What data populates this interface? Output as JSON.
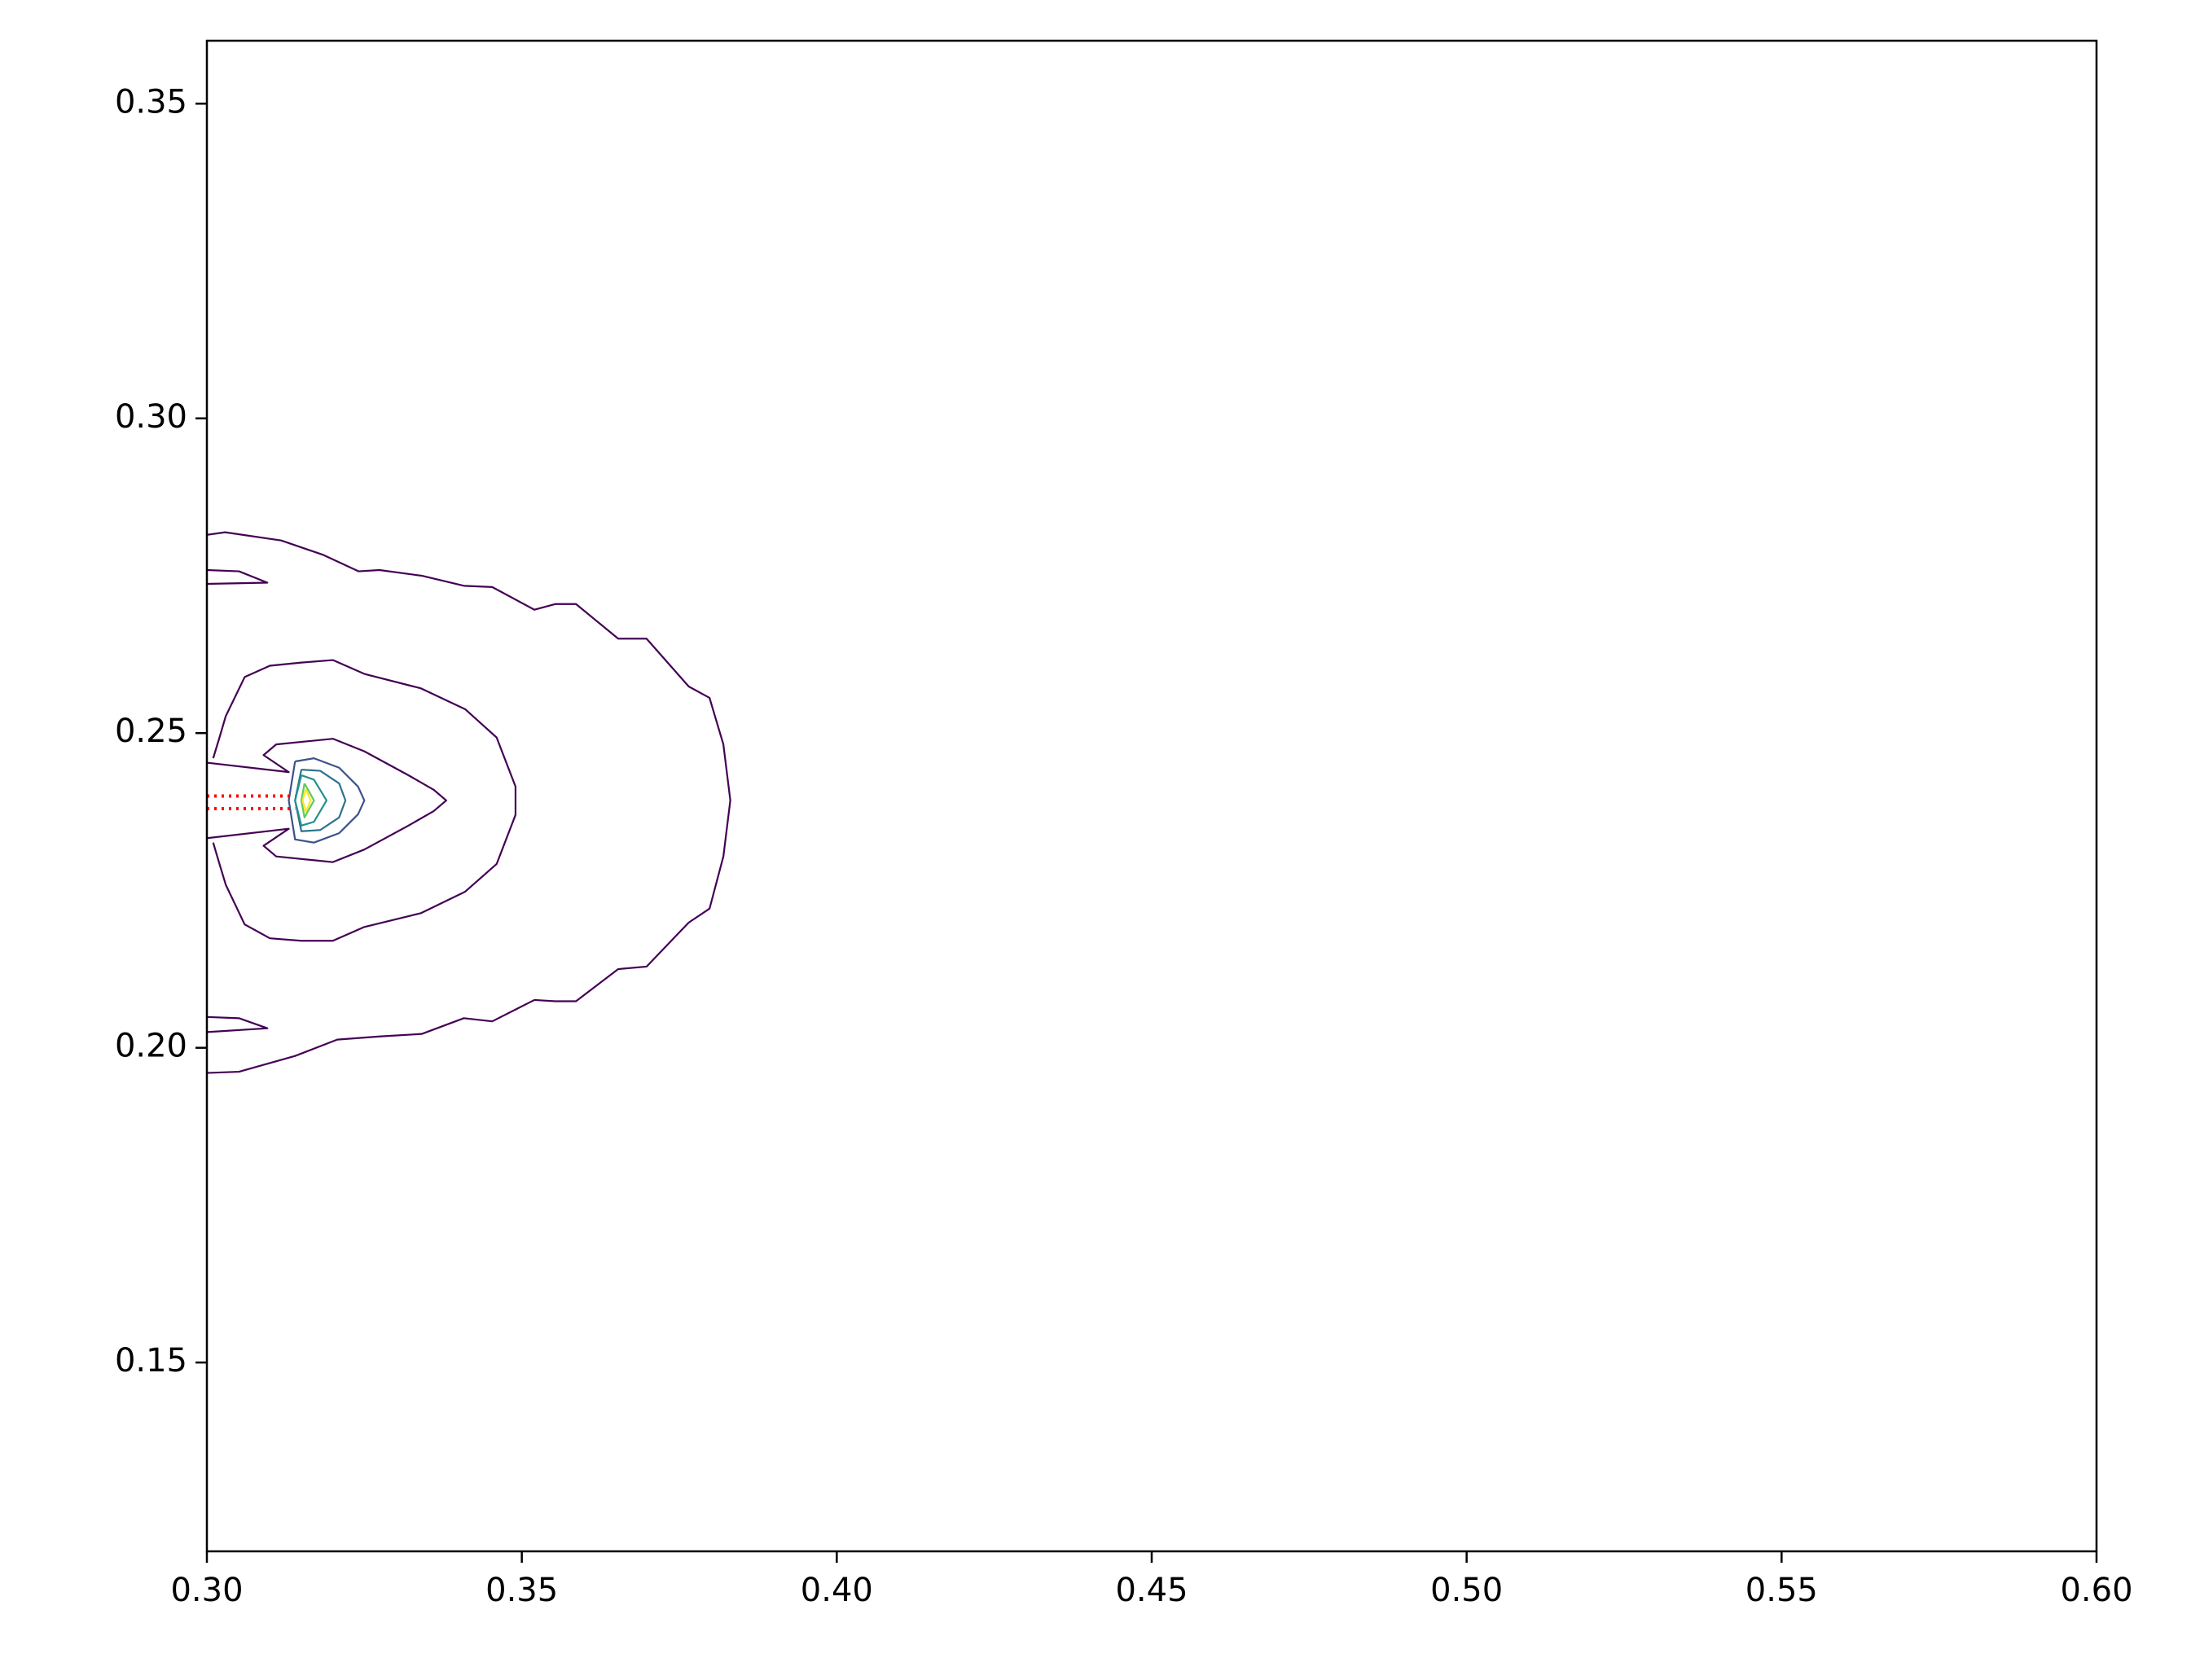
{
  "chart_data": {
    "type": "contour",
    "xlim": [
      0.3,
      0.6
    ],
    "ylim": [
      0.12,
      0.36
    ],
    "xticks": [
      {
        "value": 0.3,
        "label": "0.30"
      },
      0.35,
      {
        "value": 0.4,
        "label": "0.40"
      },
      0.45,
      {
        "value": 0.5,
        "label": "0.50"
      },
      0.55,
      {
        "value": 0.6,
        "label": "0.60"
      }
    ],
    "yticks": [
      0.15,
      {
        "value": 0.2,
        "label": "0.20"
      },
      0.25,
      {
        "value": 0.3,
        "label": "0.30"
      },
      0.35
    ],
    "series": [
      {
        "color": "#440154",
        "x": [
          0.3,
          0.3029,
          0.3118,
          0.3185,
          0.3241,
          0.3274,
          0.3341,
          0.3408,
          0.3453,
          0.352,
          0.3553,
          0.3586,
          0.3653,
          0.3698,
          0.3765,
          0.3798,
          0.382,
          0.3831,
          0.382,
          0.3798,
          0.3765,
          0.3698,
          0.3653,
          0.3586,
          0.3553,
          0.352,
          0.3453,
          0.3408,
          0.3341,
          0.3274,
          0.3207,
          0.314,
          0.3051,
          0.3
        ],
        "y": [
          0.2815,
          0.2819,
          0.2806,
          0.2783,
          0.2757,
          0.2759,
          0.275,
          0.2734,
          0.2732,
          0.2696,
          0.2705,
          0.2705,
          0.265,
          0.265,
          0.2574,
          0.2556,
          0.2482,
          0.2393,
          0.2304,
          0.2221,
          0.2199,
          0.2129,
          0.2125,
          0.2074,
          0.2074,
          0.2076,
          0.2042,
          0.2047,
          0.2022,
          0.2018,
          0.2013,
          0.1987,
          0.1962,
          0.196
        ]
      },
      {
        "color": "#440154",
        "x": [
          0.3,
          0.3051,
          0.3096,
          0.3
        ],
        "y": [
          0.2759,
          0.2757,
          0.2739,
          0.2737
        ]
      },
      {
        "color": "#440154",
        "x": [
          0.3,
          0.3051,
          0.3096,
          0.3
        ],
        "y": [
          0.2049,
          0.2047,
          0.2031,
          0.2025
        ]
      },
      {
        "color": "#440154",
        "x": [
          0.301,
          0.302,
          0.303,
          0.306,
          0.31,
          0.315,
          0.32,
          0.325,
          0.334,
          0.341,
          0.346,
          0.349,
          0.349,
          0.346,
          0.341,
          0.334,
          0.325,
          0.32,
          0.315,
          0.31,
          0.306,
          0.303,
          0.302,
          0.301
        ],
        "y": [
          0.246,
          0.2493,
          0.2527,
          0.2589,
          0.2607,
          0.2612,
          0.2616,
          0.2594,
          0.2571,
          0.2538,
          0.2493,
          0.2415,
          0.237,
          0.2292,
          0.2248,
          0.2214,
          0.2192,
          0.217,
          0.217,
          0.2174,
          0.2196,
          0.2259,
          0.2292,
          0.2326
        ]
      },
      {
        "color": "#440154",
        "x": [
          0.3,
          0.313,
          0.309,
          0.311,
          0.32,
          0.325,
          0.332,
          0.336,
          0.338,
          0.336,
          0.332,
          0.325,
          0.32,
          0.311,
          0.309,
          0.313,
          0.3
        ],
        "y": [
          0.2453,
          0.2438,
          0.2465,
          0.2482,
          0.2491,
          0.2471,
          0.2433,
          0.241,
          0.2393,
          0.2376,
          0.2353,
          0.2315,
          0.2295,
          0.2304,
          0.2321,
          0.2348,
          0.2333
        ]
      },
      {
        "color": "#3b528b",
        "x": [
          0.314,
          0.317,
          0.321,
          0.324,
          0.325,
          0.324,
          0.321,
          0.317,
          0.314,
          0.313,
          0.314
        ],
        "y": [
          0.2455,
          0.246,
          0.2445,
          0.2415,
          0.2393,
          0.2371,
          0.2341,
          0.2326,
          0.2331,
          0.2393,
          0.2455
        ]
      },
      {
        "color": "#2c728e",
        "x": [
          0.315,
          0.318,
          0.321,
          0.322,
          0.321,
          0.318,
          0.315,
          0.314,
          0.315
        ],
        "y": [
          0.2442,
          0.244,
          0.242,
          0.2393,
          0.2366,
          0.2346,
          0.2344,
          0.2393,
          0.2442
        ]
      },
      {
        "color": "#21918c",
        "x": [
          0.315,
          0.317,
          0.319,
          0.317,
          0.315,
          0.314,
          0.315
        ],
        "y": [
          0.2433,
          0.2426,
          0.2393,
          0.2359,
          0.2353,
          0.2393,
          0.2433
        ]
      },
      {
        "color": "#5ec962",
        "x": [
          0.3155,
          0.317,
          0.3155,
          0.315,
          0.3155
        ],
        "y": [
          0.242,
          0.2393,
          0.2366,
          0.2393,
          0.242
        ]
      },
      {
        "color": "#fde725",
        "x": [
          0.3157,
          0.3165,
          0.3157,
          0.3152,
          0.3157
        ],
        "y": [
          0.2411,
          0.2393,
          0.2375,
          0.2393,
          0.2411
        ]
      },
      {
        "color": "#ff0000",
        "dash": "dotted",
        "x": [
          0.3,
          0.314
        ],
        "y": [
          0.24,
          0.24
        ]
      },
      {
        "color": "#ff0000",
        "dash": "dotted",
        "x": [
          0.3,
          0.314
        ],
        "y": [
          0.238,
          0.238
        ]
      }
    ]
  }
}
